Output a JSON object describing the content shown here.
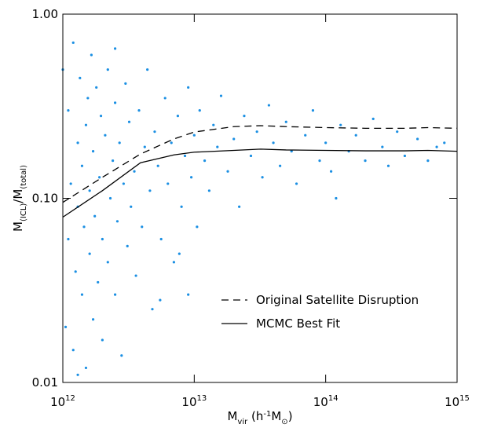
{
  "chart_data": {
    "type": "scatter",
    "x_label_parts": [
      "M",
      "vir",
      " (h",
      "-1",
      "M",
      "⊙",
      ")"
    ],
    "y_label_parts": [
      "M",
      "(ICL)",
      "/M",
      "(total)"
    ],
    "xlog": true,
    "ylog": true,
    "xlim": [
      1000000000000.0,
      1000000000000000.0
    ],
    "ylim": [
      0.01,
      1.0
    ],
    "xticks": [
      {
        "value": 1000000000000.0,
        "label": "10",
        "exponent": "12"
      },
      {
        "value": 10000000000000.0,
        "label": "10",
        "exponent": "13"
      },
      {
        "value": 100000000000000.0,
        "label": "10",
        "exponent": "14"
      },
      {
        "value": 1000000000000000.0,
        "label": "10",
        "exponent": "15"
      }
    ],
    "yticks": [
      0.01,
      {
        "value": 0.1,
        "label": "0.10"
      },
      {
        "value": 1.0,
        "label": "1.00"
      }
    ],
    "point_color": "#1a8fe3",
    "legend": "lower right",
    "x": [
      1000000000000.0,
      1050000000000.0,
      1100000000000.0,
      1100000000000.0,
      1150000000000.0,
      1200000000000.0,
      1200000000000.0,
      1250000000000.0,
      1300000000000.0,
      1300000000000.0,
      1350000000000.0,
      1400000000000.0,
      1400000000000.0,
      1450000000000.0,
      1500000000000.0,
      1500000000000.0,
      1550000000000.0,
      1600000000000.0,
      1600000000000.0,
      1650000000000.0,
      1700000000000.0,
      1700000000000.0,
      1750000000000.0,
      1800000000000.0,
      1850000000000.0,
      1900000000000.0,
      1950000000000.0,
      2000000000000.0,
      2000000000000.0,
      2100000000000.0,
      2200000000000.0,
      2200000000000.0,
      2300000000000.0,
      2400000000000.0,
      2500000000000.0,
      2500000000000.0,
      2600000000000.0,
      2700000000000.0,
      2800000000000.0,
      2900000000000.0,
      3000000000000.0,
      3100000000000.0,
      3200000000000.0,
      3300000000000.0,
      3500000000000.0,
      3600000000000.0,
      3800000000000.0,
      4000000000000.0,
      4200000000000.0,
      4400000000000.0,
      4600000000000.0,
      4800000000000.0,
      5000000000000.0,
      5300000000000.0,
      5600000000000.0,
      6000000000000.0,
      6300000000000.0,
      6700000000000.0,
      7000000000000.0,
      7500000000000.0,
      8000000000000.0,
      8500000000000.0,
      9000000000000.0,
      9500000000000.0,
      10000000000000.0,
      10500000000000.0,
      11000000000000.0,
      12000000000000.0,
      13000000000000.0,
      14000000000000.0,
      15000000000000.0,
      16000000000000.0,
      18000000000000.0,
      20000000000000.0,
      22000000000000.0,
      24000000000000.0,
      27000000000000.0,
      30000000000000.0,
      33000000000000.0,
      37000000000000.0,
      40000000000000.0,
      45000000000000.0,
      50000000000000.0,
      55000000000000.0,
      60000000000000.0,
      70000000000000.0,
      80000000000000.0,
      90000000000000.0,
      100000000000000.0,
      110000000000000.0,
      130000000000000.0,
      150000000000000.0,
      170000000000000.0,
      200000000000000.0,
      230000000000000.0,
      270000000000000.0,
      300000000000000.0,
      350000000000000.0,
      400000000000000.0,
      500000000000000.0,
      600000000000000.0,
      700000000000000.0,
      800000000000000.0,
      120000000000000.0,
      5500000000000.0,
      7700000000000.0,
      1300000000000.0,
      2500000000000.0,
      9000000000000.0
    ],
    "y": [
      0.5,
      0.02,
      0.3,
      0.06,
      0.12,
      0.7,
      0.015,
      0.04,
      0.2,
      0.09,
      0.45,
      0.03,
      0.15,
      0.07,
      0.25,
      0.012,
      0.35,
      0.05,
      0.11,
      0.6,
      0.022,
      0.18,
      0.08,
      0.4,
      0.035,
      0.13,
      0.28,
      0.06,
      0.017,
      0.22,
      0.5,
      0.045,
      0.1,
      0.16,
      0.03,
      0.33,
      0.075,
      0.2,
      0.014,
      0.12,
      0.42,
      0.055,
      0.26,
      0.09,
      0.14,
      0.038,
      0.3,
      0.07,
      0.19,
      0.5,
      0.11,
      0.025,
      0.23,
      0.15,
      0.06,
      0.35,
      0.12,
      0.2,
      0.045,
      0.28,
      0.09,
      0.17,
      0.4,
      0.13,
      0.22,
      0.07,
      0.3,
      0.16,
      0.11,
      0.25,
      0.19,
      0.36,
      0.14,
      0.21,
      0.09,
      0.28,
      0.17,
      0.23,
      0.13,
      0.32,
      0.2,
      0.15,
      0.26,
      0.18,
      0.12,
      0.22,
      0.3,
      0.16,
      0.2,
      0.14,
      0.25,
      0.18,
      0.22,
      0.16,
      0.27,
      0.19,
      0.15,
      0.23,
      0.17,
      0.21,
      0.16,
      0.19,
      0.2,
      0.1,
      0.028,
      0.05,
      0.011,
      0.65,
      0.03
    ],
    "series": [
      {
        "name": "Original Satellite Disruption",
        "color": "#000000",
        "dash": "dashed",
        "x": [
          1000000000000.0,
          2000000000000.0,
          3900000000000.0,
          7000000000000.0,
          10000000000000.0,
          20000000000000.0,
          32000000000000.0,
          50000000000000.0,
          100000000000000.0,
          200000000000000.0,
          400000000000000.0,
          600000000000000.0,
          1000000000000000.0
        ],
        "values": [
          0.095,
          0.13,
          0.174,
          0.21,
          0.229,
          0.245,
          0.248,
          0.245,
          0.242,
          0.24,
          0.24,
          0.242,
          0.24
        ]
      },
      {
        "name": "MCMC Best Fit",
        "color": "#000000",
        "dash": "solid",
        "x": [
          1000000000000.0,
          2000000000000.0,
          3900000000000.0,
          7000000000000.0,
          10000000000000.0,
          20000000000000.0,
          32000000000000.0,
          50000000000000.0,
          100000000000000.0,
          200000000000000.0,
          400000000000000.0,
          600000000000000.0,
          1000000000000000.0
        ],
        "values": [
          0.079,
          0.11,
          0.156,
          0.172,
          0.178,
          0.182,
          0.185,
          0.183,
          0.182,
          0.181,
          0.181,
          0.182,
          0.18
        ]
      }
    ]
  }
}
